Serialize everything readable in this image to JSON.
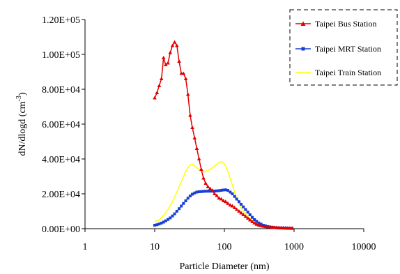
{
  "chart_data": {
    "type": "line",
    "xscale": "log",
    "xlim": [
      1,
      10000
    ],
    "ylim": [
      0,
      120000
    ],
    "xlabel": "Particle Diameter (nm)",
    "ylabel_main": "dN/dlogd (cm",
    "ylabel_sup": "-3",
    "ylabel_close": ")",
    "x_ticks": [
      1,
      10,
      100,
      1000,
      10000
    ],
    "x_tick_labels": [
      "1",
      "10",
      "100",
      "1000",
      "10000"
    ],
    "y_ticks": [
      0,
      20000,
      40000,
      60000,
      80000,
      100000,
      120000
    ],
    "y_tick_labels": [
      "0.00E+00",
      "2.00E+04",
      "4.00E+04",
      "6.00E+04",
      "8.00E+04",
      "1.00E+05",
      "1.20E+05"
    ],
    "legend_position": "top-right",
    "series": [
      {
        "name": "Taipei Bus Station",
        "color": "#e00000",
        "marker": "triangle",
        "points": [
          [
            10,
            75000
          ],
          [
            10.8,
            78000
          ],
          [
            11.6,
            82000
          ],
          [
            12.5,
            86000
          ],
          [
            13.4,
            98000
          ],
          [
            14.4,
            94000
          ],
          [
            15.5,
            95000
          ],
          [
            16.7,
            101000
          ],
          [
            18,
            105000
          ],
          [
            19.3,
            107000
          ],
          [
            20.8,
            105000
          ],
          [
            22.4,
            96000
          ],
          [
            24.1,
            89000
          ],
          [
            25.9,
            89000
          ],
          [
            27.9,
            86000
          ],
          [
            30,
            77000
          ],
          [
            32.3,
            65000
          ],
          [
            34.7,
            58000
          ],
          [
            37.4,
            52000
          ],
          [
            40.2,
            46000
          ],
          [
            43.3,
            40000
          ],
          [
            46.6,
            34000
          ],
          [
            50.1,
            29000
          ],
          [
            53.9,
            26000
          ],
          [
            58,
            24000
          ],
          [
            62.4,
            23000
          ],
          [
            67.1,
            22000
          ],
          [
            72.2,
            20000
          ],
          [
            77.7,
            19000
          ],
          [
            83.6,
            17500
          ],
          [
            90,
            17000
          ],
          [
            96.8,
            16000
          ],
          [
            104,
            15500
          ],
          [
            112,
            14500
          ],
          [
            121,
            13500
          ],
          [
            130,
            13000
          ],
          [
            140,
            12000
          ],
          [
            150,
            11000
          ],
          [
            162,
            10000
          ],
          [
            174,
            9000
          ],
          [
            187,
            8000
          ],
          [
            201,
            7000
          ],
          [
            217,
            6000
          ],
          [
            233,
            5000
          ],
          [
            251,
            4000
          ],
          [
            270,
            3200
          ],
          [
            290,
            2500
          ],
          [
            312,
            2000
          ],
          [
            336,
            1700
          ],
          [
            362,
            1400
          ],
          [
            389,
            1200
          ],
          [
            419,
            1000
          ],
          [
            450,
            900
          ],
          [
            485,
            800
          ],
          [
            522,
            700
          ],
          [
            561,
            600
          ],
          [
            604,
            550
          ],
          [
            650,
            500
          ],
          [
            700,
            450
          ],
          [
            753,
            400
          ],
          [
            810,
            350
          ],
          [
            871,
            300
          ],
          [
            937,
            250
          ]
        ]
      },
      {
        "name": "Taipei MRT Station",
        "color": "#1a3fd6",
        "marker": "square",
        "points": [
          [
            10,
            2000
          ],
          [
            10.8,
            2300
          ],
          [
            11.6,
            2700
          ],
          [
            12.5,
            3200
          ],
          [
            13.4,
            3800
          ],
          [
            14.4,
            4500
          ],
          [
            15.5,
            5300
          ],
          [
            16.7,
            6200
          ],
          [
            18,
            7300
          ],
          [
            19.3,
            8500
          ],
          [
            20.8,
            10000
          ],
          [
            22.4,
            11500
          ],
          [
            24.1,
            13000
          ],
          [
            25.9,
            14500
          ],
          [
            27.9,
            16000
          ],
          [
            30,
            17500
          ],
          [
            32.3,
            18800
          ],
          [
            34.7,
            19800
          ],
          [
            37.4,
            20500
          ],
          [
            40.2,
            21000
          ],
          [
            43.3,
            21200
          ],
          [
            46.6,
            21300
          ],
          [
            50.1,
            21400
          ],
          [
            53.9,
            21500
          ],
          [
            58,
            21500
          ],
          [
            62.4,
            21500
          ],
          [
            67.1,
            21500
          ],
          [
            72.2,
            21600
          ],
          [
            77.7,
            21700
          ],
          [
            83.6,
            21800
          ],
          [
            90,
            22000
          ],
          [
            96.8,
            22200
          ],
          [
            104,
            22300
          ],
          [
            112,
            22000
          ],
          [
            121,
            21000
          ],
          [
            130,
            20000
          ],
          [
            140,
            18500
          ],
          [
            150,
            17000
          ],
          [
            162,
            15500
          ],
          [
            174,
            14000
          ],
          [
            187,
            12500
          ],
          [
            201,
            11000
          ],
          [
            217,
            9500
          ],
          [
            233,
            8000
          ],
          [
            251,
            6500
          ],
          [
            270,
            5200
          ],
          [
            290,
            4200
          ],
          [
            312,
            3300
          ],
          [
            336,
            2600
          ],
          [
            362,
            2000
          ],
          [
            389,
            1600
          ],
          [
            419,
            1200
          ],
          [
            450,
            1000
          ],
          [
            485,
            800
          ],
          [
            522,
            600
          ],
          [
            561,
            500
          ],
          [
            604,
            400
          ],
          [
            650,
            350
          ],
          [
            700,
            300
          ],
          [
            753,
            250
          ],
          [
            810,
            200
          ],
          [
            871,
            180
          ],
          [
            937,
            150
          ]
        ]
      },
      {
        "name": "Taipei Train Station",
        "color": "#ffff00",
        "marker": "none",
        "points": [
          [
            10,
            4000
          ],
          [
            11.6,
            5000
          ],
          [
            13.4,
            7500
          ],
          [
            15.5,
            11000
          ],
          [
            18,
            15500
          ],
          [
            20.8,
            21000
          ],
          [
            24.1,
            27000
          ],
          [
            27.9,
            33000
          ],
          [
            30,
            35000
          ],
          [
            32.3,
            36500
          ],
          [
            34.7,
            37000
          ],
          [
            37.4,
            36000
          ],
          [
            40.2,
            35000
          ],
          [
            43.3,
            34000
          ],
          [
            46.6,
            33000
          ],
          [
            50.1,
            32500
          ],
          [
            53.9,
            33000
          ],
          [
            58,
            33500
          ],
          [
            62.4,
            34000
          ],
          [
            67.1,
            35000
          ],
          [
            72.2,
            36000
          ],
          [
            77.7,
            37000
          ],
          [
            83.6,
            38000
          ],
          [
            90,
            38500
          ],
          [
            96.8,
            38000
          ],
          [
            104,
            36000
          ],
          [
            112,
            33000
          ],
          [
            121,
            29000
          ],
          [
            130,
            25000
          ],
          [
            140,
            21000
          ],
          [
            150,
            17500
          ],
          [
            162,
            14500
          ],
          [
            174,
            12000
          ],
          [
            187,
            10000
          ],
          [
            201,
            8500
          ],
          [
            217,
            7000
          ],
          [
            233,
            5800
          ],
          [
            251,
            4800
          ],
          [
            270,
            4000
          ],
          [
            290,
            3300
          ],
          [
            312,
            2700
          ],
          [
            336,
            2200
          ],
          [
            362,
            1800
          ],
          [
            389,
            1500
          ],
          [
            419,
            1200
          ],
          [
            450,
            1000
          ],
          [
            485,
            800
          ],
          [
            522,
            650
          ],
          [
            561,
            550
          ],
          [
            604,
            450
          ],
          [
            650,
            380
          ],
          [
            700,
            320
          ],
          [
            753,
            280
          ],
          [
            810,
            240
          ],
          [
            871,
            200
          ],
          [
            937,
            170
          ]
        ]
      }
    ]
  }
}
